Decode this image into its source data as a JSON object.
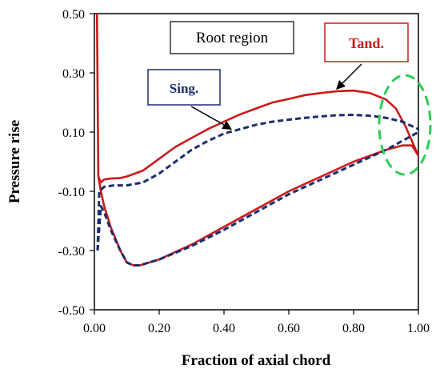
{
  "chart_data": {
    "type": "line",
    "title": "",
    "xlabel": "Fraction of axial chord",
    "ylabel": "Pressure rise",
    "xlim": [
      0,
      1
    ],
    "ylim": [
      -0.5,
      0.5
    ],
    "x_ticks": [
      "0.00",
      "0.20",
      "0.40",
      "0.60",
      "0.80",
      "1.00"
    ],
    "y_ticks": [
      "0.50",
      "0.30",
      "0.10",
      "-0.10",
      "-0.30",
      "-0.50"
    ],
    "grid": false,
    "annotations": {
      "region_label": "Root region",
      "tandem_label": "Tand.",
      "single_label": "Sing."
    },
    "colors": {
      "tandem": "#cc1a1a",
      "single": "#1a2e6e",
      "highlight": "#2ecc55"
    },
    "series": [
      {
        "key": "tandem_upper",
        "color": "#cc1a1a",
        "dash": false,
        "points": [
          [
            0.008,
            0.5
          ],
          [
            0.012,
            -0.05
          ],
          [
            0.02,
            -0.07
          ],
          [
            0.03,
            -0.06
          ],
          [
            0.05,
            -0.057
          ],
          [
            0.08,
            -0.055
          ],
          [
            0.1,
            -0.05
          ],
          [
            0.15,
            -0.03
          ],
          [
            0.2,
            0.01
          ],
          [
            0.25,
            0.05
          ],
          [
            0.3,
            0.08
          ],
          [
            0.35,
            0.11
          ],
          [
            0.4,
            0.135
          ],
          [
            0.45,
            0.16
          ],
          [
            0.5,
            0.18
          ],
          [
            0.55,
            0.2
          ],
          [
            0.6,
            0.212
          ],
          [
            0.65,
            0.225
          ],
          [
            0.7,
            0.232
          ],
          [
            0.75,
            0.238
          ],
          [
            0.8,
            0.24
          ],
          [
            0.85,
            0.232
          ],
          [
            0.9,
            0.21
          ],
          [
            0.93,
            0.18
          ],
          [
            0.96,
            0.12
          ],
          [
            0.98,
            0.07
          ],
          [
            1.0,
            0.02
          ]
        ]
      },
      {
        "key": "tandem_lower",
        "color": "#cc1a1a",
        "dash": false,
        "points": [
          [
            0.012,
            -0.05
          ],
          [
            0.02,
            -0.1
          ],
          [
            0.03,
            -0.15
          ],
          [
            0.05,
            -0.22
          ],
          [
            0.08,
            -0.3
          ],
          [
            0.1,
            -0.34
          ],
          [
            0.12,
            -0.35
          ],
          [
            0.14,
            -0.35
          ],
          [
            0.2,
            -0.33
          ],
          [
            0.3,
            -0.28
          ],
          [
            0.4,
            -0.22
          ],
          [
            0.5,
            -0.16
          ],
          [
            0.6,
            -0.1
          ],
          [
            0.7,
            -0.05
          ],
          [
            0.8,
            0.0
          ],
          [
            0.85,
            0.02
          ],
          [
            0.9,
            0.04
          ],
          [
            0.95,
            0.055
          ],
          [
            0.98,
            0.055
          ],
          [
            1.0,
            0.02
          ]
        ]
      },
      {
        "key": "single_upper",
        "color": "#1a2e6e",
        "dash": true,
        "points": [
          [
            0.01,
            -0.3
          ],
          [
            0.015,
            -0.1
          ],
          [
            0.03,
            -0.085
          ],
          [
            0.06,
            -0.08
          ],
          [
            0.1,
            -0.08
          ],
          [
            0.15,
            -0.07
          ],
          [
            0.2,
            -0.04
          ],
          [
            0.25,
            0.0
          ],
          [
            0.3,
            0.04
          ],
          [
            0.35,
            0.07
          ],
          [
            0.4,
            0.095
          ],
          [
            0.45,
            0.11
          ],
          [
            0.5,
            0.125
          ],
          [
            0.55,
            0.135
          ],
          [
            0.6,
            0.142
          ],
          [
            0.65,
            0.148
          ],
          [
            0.7,
            0.153
          ],
          [
            0.75,
            0.157
          ],
          [
            0.8,
            0.158
          ],
          [
            0.85,
            0.155
          ],
          [
            0.9,
            0.148
          ],
          [
            0.95,
            0.135
          ],
          [
            1.0,
            0.11
          ]
        ]
      },
      {
        "key": "single_lower",
        "color": "#1a2e6e",
        "dash": true,
        "points": [
          [
            0.01,
            -0.3
          ],
          [
            0.02,
            -0.15
          ],
          [
            0.03,
            -0.17
          ],
          [
            0.05,
            -0.23
          ],
          [
            0.08,
            -0.3
          ],
          [
            0.1,
            -0.34
          ],
          [
            0.12,
            -0.35
          ],
          [
            0.14,
            -0.35
          ],
          [
            0.2,
            -0.33
          ],
          [
            0.3,
            -0.285
          ],
          [
            0.4,
            -0.23
          ],
          [
            0.5,
            -0.17
          ],
          [
            0.6,
            -0.11
          ],
          [
            0.7,
            -0.06
          ],
          [
            0.8,
            -0.01
          ],
          [
            0.9,
            0.04
          ],
          [
            0.95,
            0.07
          ],
          [
            1.0,
            0.1
          ]
        ]
      }
    ]
  }
}
